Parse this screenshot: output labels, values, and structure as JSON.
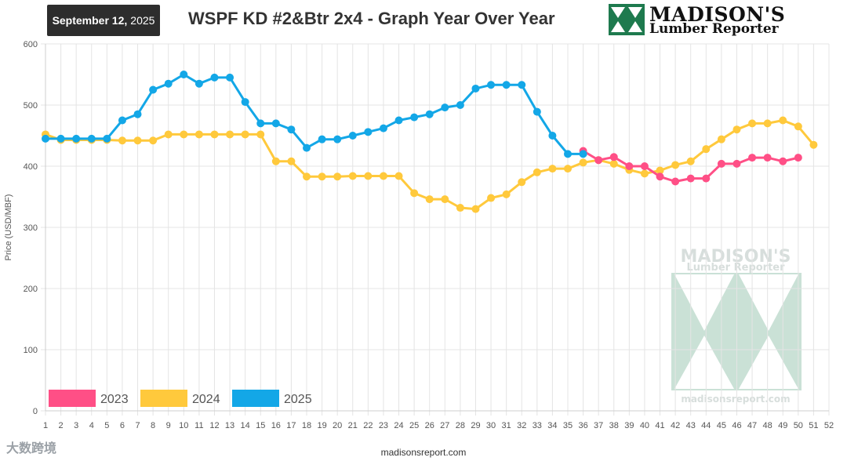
{
  "header": {
    "date_bold": "September 12,",
    "date_year": "2025",
    "title": "WSPF KD #2&Btr 2x4 - Graph Year Over Year"
  },
  "logo": {
    "line1": "MADISON'S",
    "line2": "Lumber Reporter"
  },
  "watermark": {
    "line1": "MADISON'S",
    "line2": "Lumber Reporter",
    "url": "madisonsreport.com"
  },
  "footer": {
    "url": "madisonsreport.com"
  },
  "bottom_left_logo": "大数跨境",
  "colors": {
    "c2023": "#ff4f86",
    "c2024": "#ffc93c",
    "c2025": "#13a7e7",
    "grid": "#e4e4e4"
  },
  "chart_data": {
    "type": "line",
    "title": "WSPF KD #2&Btr 2x4 - Graph Year Over Year",
    "xlabel": "",
    "ylabel": "Price (USD/MBF)",
    "ylim": [
      0,
      600
    ],
    "yticks": [
      0,
      100,
      200,
      300,
      400,
      500,
      600
    ],
    "x": [
      1,
      2,
      3,
      4,
      5,
      6,
      7,
      8,
      9,
      10,
      11,
      12,
      13,
      14,
      15,
      16,
      17,
      18,
      19,
      20,
      21,
      22,
      23,
      24,
      25,
      26,
      27,
      28,
      29,
      30,
      31,
      32,
      33,
      34,
      35,
      36,
      37,
      38,
      39,
      40,
      41,
      42,
      43,
      44,
      45,
      46,
      47,
      48,
      49,
      50,
      51,
      52
    ],
    "grid": true,
    "legend_position": "bottom-left",
    "series": [
      {
        "name": "2023",
        "color": "#ff4f86",
        "x": [
          36,
          37,
          38,
          39,
          40,
          41,
          42,
          43,
          44,
          45,
          46,
          47,
          48,
          49,
          50
        ],
        "values": [
          425,
          410,
          415,
          400,
          400,
          383,
          375,
          380,
          380,
          404,
          404,
          414,
          414,
          408,
          414
        ]
      },
      {
        "name": "2024",
        "color": "#ffc93c",
        "x": [
          1,
          2,
          3,
          4,
          5,
          6,
          7,
          8,
          9,
          10,
          11,
          12,
          13,
          14,
          15,
          16,
          17,
          18,
          19,
          20,
          21,
          22,
          23,
          24,
          25,
          26,
          27,
          28,
          29,
          30,
          31,
          32,
          33,
          34,
          35,
          36,
          37,
          38,
          39,
          40,
          41,
          42,
          43,
          44,
          45,
          46,
          47,
          48,
          49,
          50,
          51
        ],
        "values": [
          452,
          443,
          443,
          443,
          443,
          442,
          442,
          442,
          452,
          452,
          452,
          452,
          452,
          452,
          452,
          408,
          408,
          383,
          383,
          383,
          384,
          384,
          384,
          384,
          356,
          346,
          346,
          332,
          330,
          348,
          354,
          374,
          390,
          396,
          396,
          406,
          410,
          404,
          394,
          388,
          393,
          402,
          408,
          428,
          444,
          460,
          470,
          470,
          475,
          465,
          435
        ]
      },
      {
        "name": "2025",
        "color": "#13a7e7",
        "x": [
          1,
          2,
          3,
          4,
          5,
          6,
          7,
          8,
          9,
          10,
          11,
          12,
          13,
          14,
          15,
          16,
          17,
          18,
          19,
          20,
          21,
          22,
          23,
          24,
          25,
          26,
          27,
          28,
          29,
          30,
          31,
          32,
          33,
          34,
          35,
          36
        ],
        "values": [
          445,
          445,
          445,
          445,
          445,
          475,
          485,
          525,
          535,
          550,
          535,
          545,
          545,
          505,
          470,
          470,
          460,
          430,
          444,
          444,
          450,
          456,
          462,
          475,
          480,
          485,
          496,
          500,
          527,
          533,
          533,
          533,
          489,
          450,
          420,
          420
        ]
      }
    ]
  }
}
